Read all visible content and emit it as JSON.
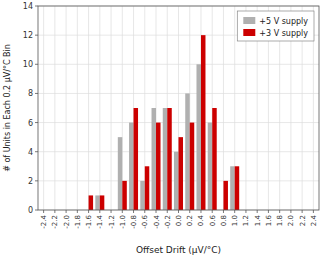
{
  "chart_data": {
    "type": "bar",
    "xlabel": "Offset Drift (μV/°C)",
    "ylabel": "# of Units in Each 0.2 μV/°C Bin",
    "x": [
      -2.4,
      -2.2,
      -2.0,
      -1.8,
      -1.6,
      -1.4,
      -1.2,
      -1.0,
      -0.8,
      -0.6,
      -0.4,
      -0.2,
      0.0,
      0.2,
      0.4,
      0.6,
      0.8,
      1.0,
      1.2,
      1.4,
      1.6,
      1.8,
      2.0,
      2.2,
      2.4
    ],
    "series": [
      {
        "name": "+5 V supply",
        "color": "#b0b0b0",
        "values": [
          0,
          0,
          0,
          0,
          0,
          1,
          0,
          5,
          6,
          2,
          7,
          7,
          4,
          8,
          10,
          6,
          0,
          3,
          0,
          0,
          0,
          0,
          0,
          0,
          0
        ]
      },
      {
        "name": "+3 V supply",
        "color": "#cc0000",
        "values": [
          0,
          0,
          0,
          0,
          1,
          1,
          0,
          2,
          7,
          3,
          6,
          7,
          5,
          6,
          12,
          7,
          2,
          3,
          0,
          0,
          0,
          0,
          0,
          0,
          0
        ]
      }
    ],
    "xlim": [
      -2.5,
      2.5
    ],
    "xticks": [
      -2.4,
      -2.2,
      {
        "value": -2.0,
        "label": "-2.0"
      },
      -1.8,
      -1.6,
      -1.4,
      -1.2,
      {
        "value": -1.0,
        "label": "-1.0"
      },
      -0.8,
      -0.6,
      -0.4,
      -0.2,
      {
        "value": 0.0,
        "label": "0.0"
      },
      0.2,
      0.4,
      0.6,
      0.8,
      {
        "value": 1.0,
        "label": "1.0"
      },
      1.2,
      1.4,
      1.6,
      1.8,
      {
        "value": 2.0,
        "label": "2.0"
      },
      2.2,
      2.4
    ],
    "ylim": [
      0,
      14
    ],
    "yticks": [
      0,
      2,
      4,
      6,
      8,
      10,
      12,
      14
    ],
    "grid": true,
    "legend": "upper right"
  }
}
